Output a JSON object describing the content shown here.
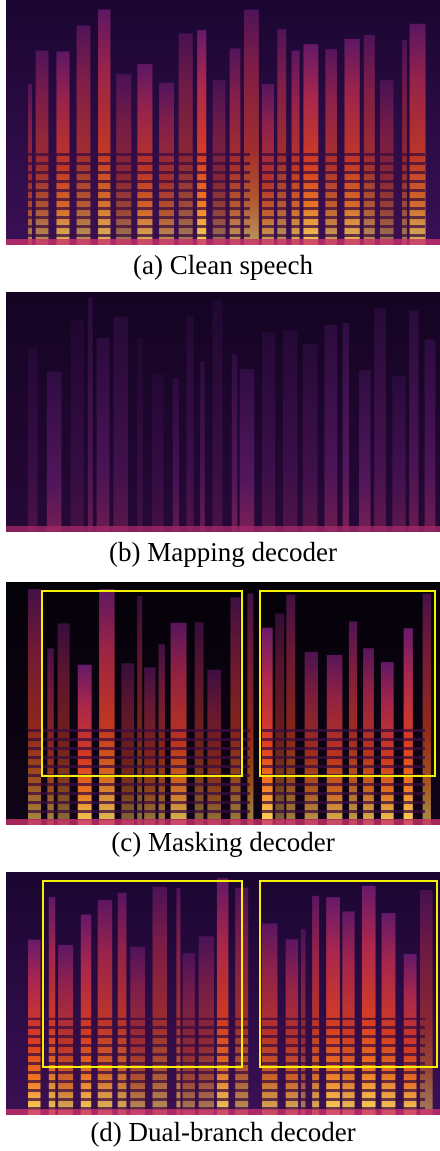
{
  "panels": [
    {
      "caption": "(a) Clean speech"
    },
    {
      "caption": "(b) Mapping decoder"
    },
    {
      "caption": "(c) Masking decoder"
    },
    {
      "caption": "(d) Dual-branch decoder"
    }
  ]
}
